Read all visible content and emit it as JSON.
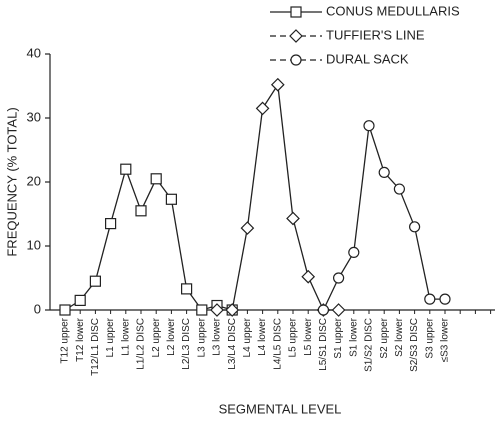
{
  "chart_data": {
    "type": "line",
    "x_label": "SEGMENTAL LEVEL",
    "y_label": "FREQUENCY (% TOTAL)",
    "categories": [
      "T12 upper",
      "T12 lower",
      "T12/L1 DISC",
      "L1 upper",
      "L1 lower",
      "L1/L2 DISC",
      "L2 upper",
      "L2 lower",
      "L2/L3 DISC",
      "L3 upper",
      "L3 lower",
      "L3/L4 DISC",
      "L4 upper",
      "L4 lower",
      "L4/L5 DISC",
      "L5 upper",
      "L5 lower",
      "L5/S1 DISC",
      "S1 upper",
      "S1 lower",
      "S1/S2 DISC",
      "S2 upper",
      "S2 lower",
      "S2/S3 DISC",
      "S3 upper",
      "≤S3 lower",
      null,
      null,
      null
    ],
    "ylim": [
      0,
      40
    ],
    "yticks": [
      0,
      10,
      20,
      30,
      40
    ],
    "series": [
      {
        "name": "CONUS MEDULLARIS",
        "color": "#222222",
        "marker": "square",
        "dashed": false,
        "values": [
          0,
          1.5,
          4.5,
          13.5,
          22,
          15.5,
          20.5,
          17.3,
          3.3,
          0,
          0.7,
          0,
          null,
          null,
          null,
          null,
          null,
          null,
          null,
          null,
          null,
          null,
          null,
          null,
          null,
          null,
          null,
          null,
          null
        ]
      },
      {
        "name": "TUFFIER'S LINE",
        "color": "#222222",
        "marker": "diamond",
        "dashed": true,
        "values": [
          null,
          null,
          null,
          null,
          null,
          null,
          null,
          null,
          null,
          null,
          0,
          0,
          12.8,
          31.5,
          35.2,
          14.3,
          5.2,
          0,
          0,
          null,
          null,
          null,
          null,
          null,
          null,
          null,
          null,
          null,
          null
        ]
      },
      {
        "name": "DURAL SACK",
        "color": "#222222",
        "marker": "circle",
        "dashed": true,
        "values": [
          null,
          null,
          null,
          null,
          null,
          null,
          null,
          null,
          null,
          null,
          null,
          null,
          null,
          null,
          null,
          null,
          null,
          0,
          5,
          9,
          28.8,
          21.5,
          18.9,
          13,
          1.7,
          1.7,
          null,
          null,
          null
        ]
      }
    ]
  }
}
